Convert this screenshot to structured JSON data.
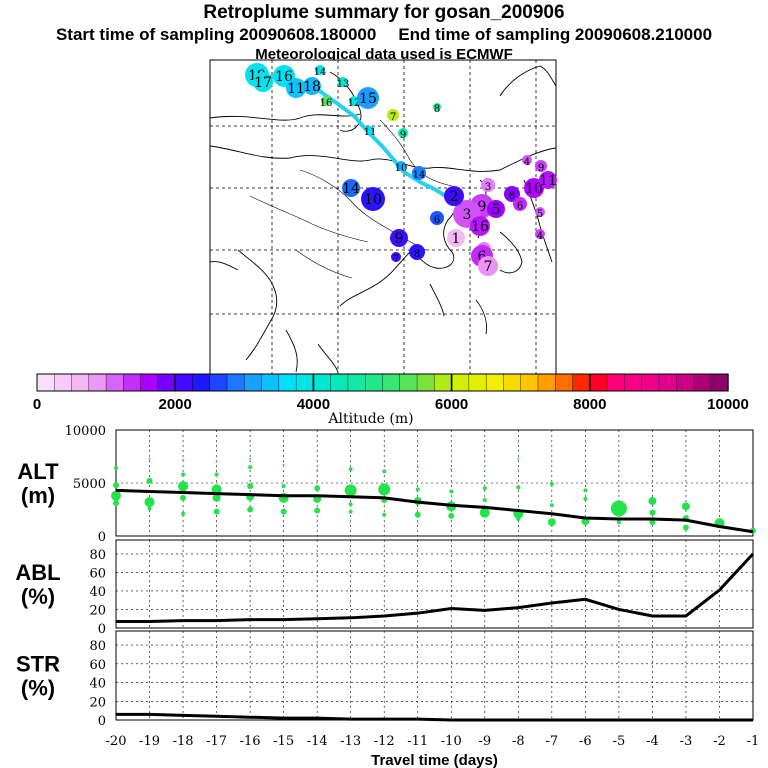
{
  "header": {
    "title": "Retroplume summary for gosan_200906",
    "start_label": "Start time of sampling 20090608.180000",
    "end_label": "End time of sampling 20090608.210000",
    "met_label": "Meteorological data used is ECMWF"
  },
  "colorbar": {
    "title": "Altitude (m)",
    "ticks": [
      "0",
      "2000",
      "4000",
      "6000",
      "8000",
      "10000"
    ],
    "range": [
      0,
      10000
    ]
  },
  "map": {
    "main_track": [
      {
        "day": 20,
        "alt": 4300
      },
      {
        "day": 19,
        "alt": 3600
      },
      {
        "day": 18,
        "alt": 3400
      },
      {
        "day": 17,
        "alt": 3500
      },
      {
        "day": 16,
        "alt": 3500
      },
      {
        "day": 15,
        "alt": 3400
      },
      {
        "day": 14,
        "alt": 3300
      },
      {
        "day": 13,
        "alt": 3600
      },
      {
        "day": 12,
        "alt": 3500
      },
      {
        "day": 11,
        "alt": 3600
      },
      {
        "day": 10,
        "alt": 3000
      },
      {
        "day": 9,
        "alt": 2800
      },
      {
        "day": 8,
        "alt": 2500
      },
      {
        "day": 7,
        "alt": 2200
      },
      {
        "day": 6,
        "alt": 1900
      },
      {
        "day": 5,
        "alt": 1800
      },
      {
        "day": 4,
        "alt": 1700
      },
      {
        "day": 3,
        "alt": 1500
      },
      {
        "day": 2,
        "alt": 1000
      },
      {
        "day": 1,
        "alt": 600
      }
    ],
    "clusters": [
      {
        "label": "19",
        "alt": 3800,
        "size": 12
      },
      {
        "label": "17",
        "alt": 3800,
        "size": 10
      },
      {
        "label": "16",
        "alt": 3700,
        "size": 11
      },
      {
        "label": "11",
        "alt": 3400,
        "size": 10
      },
      {
        "label": "18",
        "alt": 3300,
        "size": 9
      },
      {
        "label": "14",
        "alt": 3900,
        "size": 5
      },
      {
        "label": "13",
        "alt": 4100,
        "size": 5
      },
      {
        "label": "12",
        "alt": 4000,
        "size": 5
      },
      {
        "label": "15",
        "alt": 3100,
        "size": 11
      },
      {
        "label": "16",
        "alt": 5300,
        "size": 5
      },
      {
        "label": "7",
        "alt": 5900,
        "size": 6
      },
      {
        "label": "8",
        "alt": 4700,
        "size": 4
      },
      {
        "label": "9",
        "alt": 4400,
        "size": 5
      },
      {
        "label": "11",
        "alt": 3600,
        "size": 4
      },
      {
        "label": "10",
        "alt": 3200,
        "size": 5
      },
      {
        "label": "14",
        "alt": 2900,
        "size": 7
      },
      {
        "label": "10",
        "alt": 2300,
        "size": 12
      },
      {
        "label": "14",
        "alt": 2800,
        "size": 9
      },
      {
        "label": "9",
        "alt": 2200,
        "size": 9
      },
      {
        "label": "6",
        "alt": 2700,
        "size": 7
      },
      {
        "label": "8",
        "alt": 2300,
        "size": 8
      },
      {
        "label": "7",
        "alt": 2200,
        "size": 5
      },
      {
        "label": "8",
        "alt": 1600,
        "size": 5
      },
      {
        "label": "9",
        "alt": 1300,
        "size": 12
      },
      {
        "label": "3",
        "alt": 1200,
        "size": 14
      },
      {
        "label": "16",
        "alt": 1500,
        "size": 10
      },
      {
        "label": "2",
        "alt": 2200,
        "size": 10
      },
      {
        "label": "5",
        "alt": 1700,
        "size": 9
      },
      {
        "label": "1",
        "alt": 600,
        "size": 9
      },
      {
        "label": "4",
        "alt": 1000,
        "size": 7
      },
      {
        "label": "6",
        "alt": 1400,
        "size": 11
      },
      {
        "label": "7",
        "alt": 900,
        "size": 10
      },
      {
        "label": "3",
        "alt": 1000,
        "size": 7
      },
      {
        "label": "8",
        "alt": 1800,
        "size": 8
      },
      {
        "label": "6",
        "alt": 1400,
        "size": 7
      },
      {
        "label": "10",
        "alt": 1600,
        "size": 10
      },
      {
        "label": "11",
        "alt": 1500,
        "size": 9
      },
      {
        "label": "4",
        "alt": 1200,
        "size": 5
      },
      {
        "label": "9",
        "alt": 1300,
        "size": 6
      },
      {
        "label": "5",
        "alt": 1200,
        "size": 5
      },
      {
        "label": "4",
        "alt": 1300,
        "size": 5
      }
    ]
  },
  "chart_data": [
    {
      "type": "scatter",
      "panel": "ALT",
      "ylabel_line1": "ALT",
      "ylabel_line2": "(m)",
      "ylim": [
        0,
        10000
      ],
      "yticks": [
        "0",
        "5000",
        "10000"
      ],
      "xlim": [
        -20,
        -1
      ],
      "line": {
        "x": [
          -20,
          -19,
          -18,
          -17,
          -16,
          -15,
          -14,
          -13,
          -12,
          -11,
          -10,
          -9,
          -8,
          -7,
          -6,
          -5,
          -4,
          -3,
          -2,
          -1
        ],
        "y": [
          4300,
          4200,
          4100,
          4000,
          3900,
          3800,
          3800,
          3700,
          3600,
          3200,
          2900,
          2700,
          2400,
          2100,
          1700,
          1600,
          1600,
          1500,
          900,
          400
        ]
      },
      "dots": [
        {
          "x": -20,
          "y": 6400,
          "s": 2
        },
        {
          "x": -20,
          "y": 4800,
          "s": 3
        },
        {
          "x": -20,
          "y": 3800,
          "s": 5
        },
        {
          "x": -20,
          "y": 3100,
          "s": 3
        },
        {
          "x": -19,
          "y": 7300,
          "s": 1
        },
        {
          "x": -19,
          "y": 5200,
          "s": 3
        },
        {
          "x": -19,
          "y": 3200,
          "s": 5
        },
        {
          "x": -19,
          "y": 2600,
          "s": 2
        },
        {
          "x": -18,
          "y": 7200,
          "s": 1
        },
        {
          "x": -18,
          "y": 5800,
          "s": 2
        },
        {
          "x": -18,
          "y": 4700,
          "s": 5
        },
        {
          "x": -18,
          "y": 3600,
          "s": 3
        },
        {
          "x": -18,
          "y": 2100,
          "s": 2
        },
        {
          "x": -17,
          "y": 7000,
          "s": 1
        },
        {
          "x": -17,
          "y": 5800,
          "s": 2
        },
        {
          "x": -17,
          "y": 4400,
          "s": 5
        },
        {
          "x": -17,
          "y": 3600,
          "s": 4
        },
        {
          "x": -17,
          "y": 2300,
          "s": 3
        },
        {
          "x": -16,
          "y": 7300,
          "s": 1
        },
        {
          "x": -16,
          "y": 6500,
          "s": 2
        },
        {
          "x": -16,
          "y": 4700,
          "s": 3
        },
        {
          "x": -16,
          "y": 3700,
          "s": 4
        },
        {
          "x": -16,
          "y": 2500,
          "s": 3
        },
        {
          "x": -15,
          "y": 6700,
          "s": 1
        },
        {
          "x": -15,
          "y": 4700,
          "s": 2
        },
        {
          "x": -15,
          "y": 3600,
          "s": 5
        },
        {
          "x": -15,
          "y": 2300,
          "s": 3
        },
        {
          "x": -14,
          "y": 6200,
          "s": 1
        },
        {
          "x": -14,
          "y": 4500,
          "s": 3
        },
        {
          "x": -14,
          "y": 3500,
          "s": 4
        },
        {
          "x": -14,
          "y": 2400,
          "s": 3
        },
        {
          "x": -13,
          "y": 6300,
          "s": 2
        },
        {
          "x": -13,
          "y": 4300,
          "s": 6
        },
        {
          "x": -13,
          "y": 3000,
          "s": 2
        },
        {
          "x": -13,
          "y": 2300,
          "s": 2
        },
        {
          "x": -12,
          "y": 6100,
          "s": 2
        },
        {
          "x": -12,
          "y": 4400,
          "s": 6
        },
        {
          "x": -12,
          "y": 3400,
          "s": 3
        },
        {
          "x": -12,
          "y": 2000,
          "s": 2
        },
        {
          "x": -11,
          "y": 6500,
          "s": 1
        },
        {
          "x": -11,
          "y": 4400,
          "s": 2
        },
        {
          "x": -11,
          "y": 3300,
          "s": 4
        },
        {
          "x": -11,
          "y": 2000,
          "s": 3
        },
        {
          "x": -10,
          "y": 6300,
          "s": 1
        },
        {
          "x": -10,
          "y": 4200,
          "s": 2
        },
        {
          "x": -10,
          "y": 2800,
          "s": 5
        },
        {
          "x": -10,
          "y": 1900,
          "s": 3
        },
        {
          "x": -9,
          "y": 6600,
          "s": 1
        },
        {
          "x": -9,
          "y": 4500,
          "s": 2
        },
        {
          "x": -9,
          "y": 3400,
          "s": 2
        },
        {
          "x": -9,
          "y": 2200,
          "s": 5
        },
        {
          "x": -8,
          "y": 7300,
          "s": 1
        },
        {
          "x": -8,
          "y": 4600,
          "s": 2
        },
        {
          "x": -8,
          "y": 2100,
          "s": 5
        },
        {
          "x": -8,
          "y": 1600,
          "s": 2
        },
        {
          "x": -7,
          "y": 4900,
          "s": 2
        },
        {
          "x": -7,
          "y": 2900,
          "s": 2
        },
        {
          "x": -7,
          "y": 1300,
          "s": 4
        },
        {
          "x": -6,
          "y": 4300,
          "s": 2
        },
        {
          "x": -6,
          "y": 3500,
          "s": 2
        },
        {
          "x": -6,
          "y": 1400,
          "s": 4
        },
        {
          "x": -5,
          "y": 2600,
          "s": 8
        },
        {
          "x": -5,
          "y": 1300,
          "s": 2
        },
        {
          "x": -4,
          "y": 3300,
          "s": 4
        },
        {
          "x": -4,
          "y": 2200,
          "s": 3
        },
        {
          "x": -4,
          "y": 1300,
          "s": 3
        },
        {
          "x": -3,
          "y": 2800,
          "s": 4
        },
        {
          "x": -3,
          "y": 1700,
          "s": 3
        },
        {
          "x": -3,
          "y": 800,
          "s": 3
        },
        {
          "x": -2,
          "y": 1200,
          "s": 5
        },
        {
          "x": -1,
          "y": 500,
          "s": 3
        }
      ]
    },
    {
      "type": "line",
      "panel": "ABL",
      "ylabel_line1": "ABL",
      "ylabel_line2": "(%)",
      "ylim": [
        0,
        95
      ],
      "yticks": [
        "0",
        "20",
        "40",
        "60",
        "80"
      ],
      "xlim": [
        -20,
        -1
      ],
      "x": [
        -20,
        -19,
        -18,
        -17,
        -16,
        -15,
        -14,
        -13,
        -12,
        -11,
        -10,
        -9,
        -8,
        -7,
        -6,
        -5,
        -4,
        -3,
        -2,
        -1
      ],
      "y": [
        7,
        7,
        8,
        8,
        9,
        9,
        10,
        11,
        13,
        16,
        21,
        19,
        22,
        27,
        31,
        20,
        13,
        13,
        41,
        80
      ]
    },
    {
      "type": "line",
      "panel": "STR",
      "ylabel_line1": "STR",
      "ylabel_line2": "(%)",
      "ylim": [
        0,
        95
      ],
      "yticks": [
        "0",
        "20",
        "40",
        "60",
        "80"
      ],
      "xlim": [
        -20,
        -1
      ],
      "xlabel": "Travel time (days)",
      "xticks": [
        "-20",
        "-19",
        "-18",
        "-17",
        "-16",
        "-15",
        "-14",
        "-13",
        "-12",
        "-11",
        "-10",
        "-9",
        "-8",
        "-7",
        "-6",
        "-5",
        "-4",
        "-3",
        "-2",
        "-1"
      ],
      "x": [
        -20,
        -19,
        -18,
        -17,
        -16,
        -15,
        -14,
        -13,
        -12,
        -11,
        -10,
        -9,
        -8,
        -7,
        -6,
        -5,
        -4,
        -3,
        -2,
        -1
      ],
      "y": [
        6,
        6,
        5,
        4,
        3,
        2,
        2,
        1,
        1,
        1,
        0,
        0,
        0,
        0,
        0,
        0,
        0,
        0,
        0,
        0
      ]
    }
  ]
}
